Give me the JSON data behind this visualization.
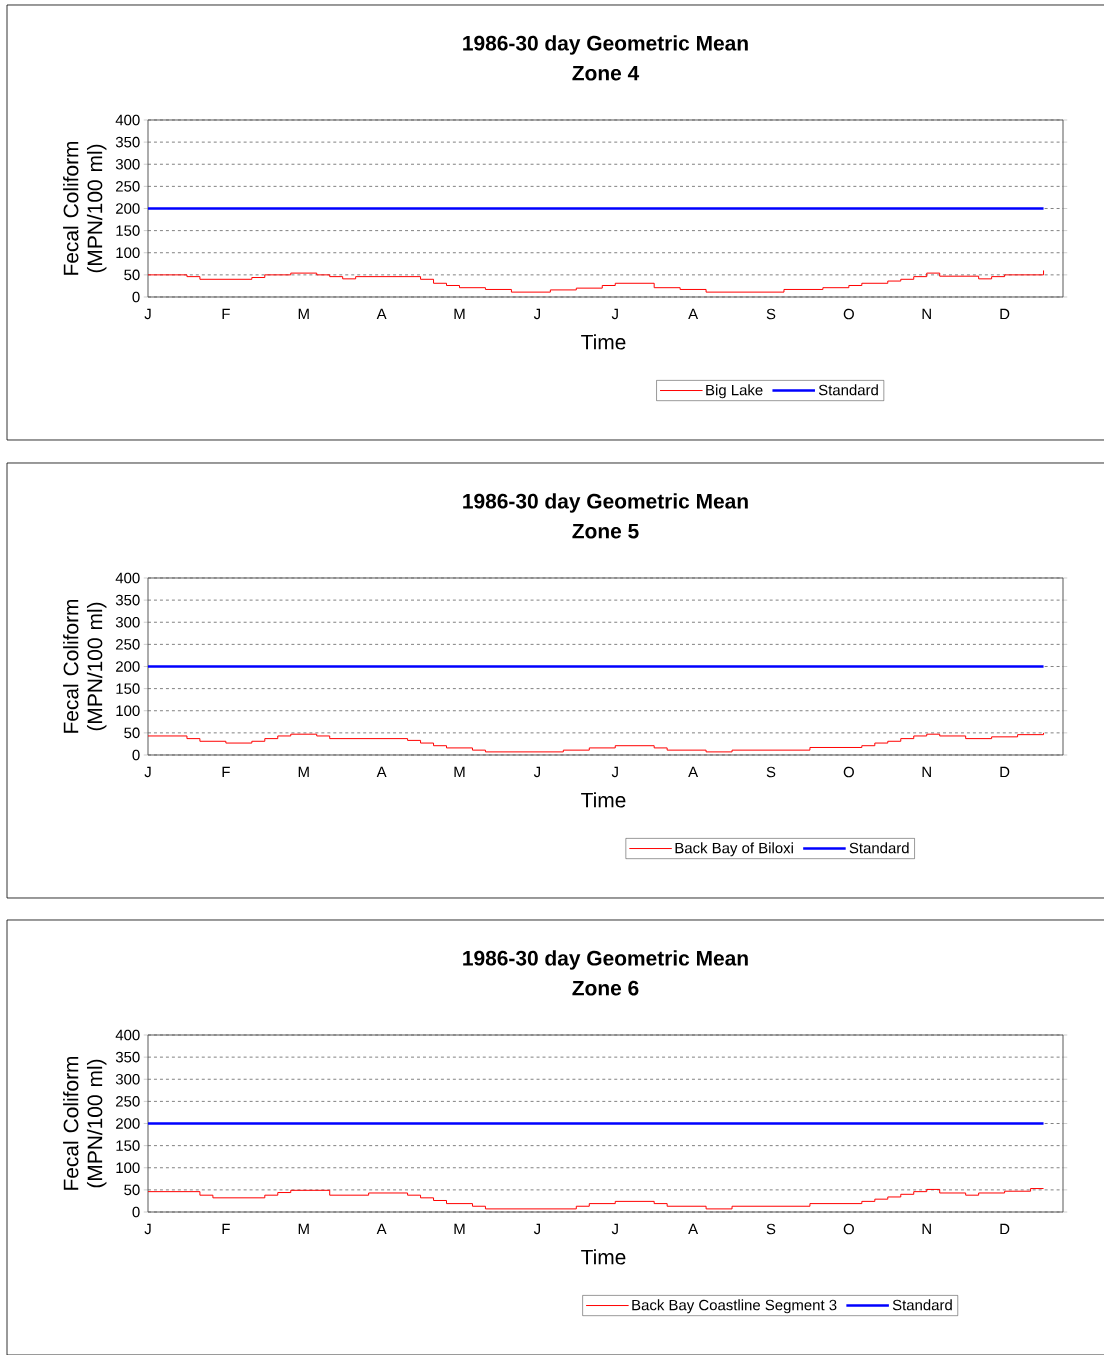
{
  "chart_data": [
    {
      "type": "line",
      "title": "1986-30 day Geometric Mean",
      "subtitle": "Zone 4",
      "xlabel": "Time",
      "ylabel": "Fecal Coliform (MPN/100 ml)",
      "ylim": [
        0,
        400
      ],
      "categories": [
        "J",
        null,
        null,
        null,
        null,
        null,
        "F",
        null,
        null,
        null,
        null,
        null,
        "M",
        null,
        null,
        null,
        null,
        null,
        "A",
        null,
        null,
        null,
        null,
        null,
        "M",
        null,
        null,
        null,
        null,
        null,
        "J",
        null,
        null,
        null,
        null,
        null,
        "J",
        null,
        null,
        null,
        null,
        null,
        "A",
        null,
        null,
        null,
        null,
        null,
        "S",
        null,
        null,
        null,
        null,
        null,
        "O",
        null,
        null,
        null,
        null,
        null,
        "N",
        null,
        null,
        null,
        null,
        null,
        "D",
        null,
        null,
        null
      ],
      "yticks": [
        0,
        50,
        100,
        150,
        200,
        250,
        300,
        350,
        400
      ],
      "grid": "y",
      "legend": "bottom",
      "series": [
        {
          "name": "Big Lake",
          "type": "step",
          "color": "#ff0000",
          "values": [
            50,
            50,
            50,
            46,
            40,
            40,
            40,
            40,
            44,
            50,
            50,
            54,
            54,
            50,
            46,
            41,
            46,
            46,
            46,
            46,
            46,
            40,
            31,
            26,
            21,
            21,
            17,
            17,
            11,
            11,
            11,
            16,
            16,
            20,
            20,
            26,
            31,
            31,
            31,
            21,
            21,
            17,
            17,
            11,
            11,
            11,
            11,
            11,
            11,
            17,
            17,
            17,
            21,
            21,
            26,
            31,
            31,
            36,
            40,
            46,
            54,
            47,
            47,
            47,
            41,
            46,
            50,
            50,
            50,
            60
          ]
        },
        {
          "name": "Standard",
          "color": "#0000ff",
          "values": [
            200,
            200,
            200,
            200,
            200,
            200,
            200,
            200,
            200,
            200,
            200,
            200,
            200,
            200,
            200,
            200,
            200,
            200,
            200,
            200,
            200,
            200,
            200,
            200,
            200,
            200,
            200,
            200,
            200,
            200,
            200,
            200,
            200,
            200,
            200,
            200,
            200,
            200,
            200,
            200,
            200,
            200,
            200,
            200,
            200,
            200,
            200,
            200,
            200,
            200,
            200,
            200,
            200,
            200,
            200,
            200,
            200,
            200,
            200,
            200,
            200,
            200,
            200,
            200,
            200,
            200,
            200,
            200,
            200,
            200
          ]
        }
      ]
    },
    {
      "type": "line",
      "title": "1986-30 day Geometric Mean",
      "subtitle": "Zone 5",
      "xlabel": "Time",
      "ylabel": "Fecal Coliform (MPN/100 ml)",
      "ylim": [
        0,
        400
      ],
      "categories": [
        "J",
        null,
        null,
        null,
        null,
        null,
        "F",
        null,
        null,
        null,
        null,
        null,
        "M",
        null,
        null,
        null,
        null,
        null,
        "A",
        null,
        null,
        null,
        null,
        null,
        "M",
        null,
        null,
        null,
        null,
        null,
        "J",
        null,
        null,
        null,
        null,
        null,
        "J",
        null,
        null,
        null,
        null,
        null,
        "A",
        null,
        null,
        null,
        null,
        null,
        "S",
        null,
        null,
        null,
        null,
        null,
        "O",
        null,
        null,
        null,
        null,
        null,
        "N",
        null,
        null,
        null,
        null,
        null,
        "D",
        null,
        null,
        null
      ],
      "yticks": [
        0,
        50,
        100,
        150,
        200,
        250,
        300,
        350,
        400
      ],
      "grid": "y",
      "legend": "bottom",
      "series": [
        {
          "name": "Back Bay of Biloxi",
          "type": "step",
          "color": "#ff0000",
          "values": [
            43,
            43,
            43,
            37,
            31,
            31,
            27,
            27,
            31,
            37,
            43,
            47,
            47,
            43,
            37,
            37,
            37,
            37,
            37,
            37,
            33,
            27,
            21,
            16,
            16,
            11,
            7,
            7,
            7,
            7,
            7,
            7,
            11,
            11,
            16,
            16,
            21,
            21,
            21,
            16,
            11,
            11,
            11,
            7,
            7,
            11,
            11,
            11,
            11,
            11,
            11,
            17,
            17,
            17,
            17,
            21,
            27,
            31,
            37,
            43,
            47,
            43,
            43,
            37,
            37,
            41,
            41,
            46,
            46,
            50
          ]
        },
        {
          "name": "Standard",
          "color": "#0000ff",
          "values": [
            200,
            200,
            200,
            200,
            200,
            200,
            200,
            200,
            200,
            200,
            200,
            200,
            200,
            200,
            200,
            200,
            200,
            200,
            200,
            200,
            200,
            200,
            200,
            200,
            200,
            200,
            200,
            200,
            200,
            200,
            200,
            200,
            200,
            200,
            200,
            200,
            200,
            200,
            200,
            200,
            200,
            200,
            200,
            200,
            200,
            200,
            200,
            200,
            200,
            200,
            200,
            200,
            200,
            200,
            200,
            200,
            200,
            200,
            200,
            200,
            200,
            200,
            200,
            200,
            200,
            200,
            200,
            200,
            200,
            200
          ]
        }
      ]
    },
    {
      "type": "line",
      "title": "1986-30 day Geometric Mean",
      "subtitle": "Zone 6",
      "xlabel": "Time",
      "ylabel": "Fecal Coliform (MPN/100 ml)",
      "ylim": [
        0,
        400
      ],
      "categories": [
        "J",
        null,
        null,
        null,
        null,
        null,
        "F",
        null,
        null,
        null,
        null,
        null,
        "M",
        null,
        null,
        null,
        null,
        null,
        "A",
        null,
        null,
        null,
        null,
        null,
        "M",
        null,
        null,
        null,
        null,
        null,
        "J",
        null,
        null,
        null,
        null,
        null,
        "J",
        null,
        null,
        null,
        null,
        null,
        "A",
        null,
        null,
        null,
        null,
        null,
        "S",
        null,
        null,
        null,
        null,
        null,
        "O",
        null,
        null,
        null,
        null,
        null,
        "N",
        null,
        null,
        null,
        null,
        null,
        "D",
        null,
        null,
        null
      ],
      "yticks": [
        0,
        50,
        100,
        150,
        200,
        250,
        300,
        350,
        400
      ],
      "grid": "y",
      "legend": "bottom",
      "series": [
        {
          "name": "Back Bay Coastline Segment 3",
          "type": "step",
          "color": "#ff0000",
          "values": [
            46,
            46,
            46,
            46,
            38,
            32,
            32,
            32,
            32,
            38,
            44,
            49,
            49,
            49,
            38,
            38,
            38,
            43,
            43,
            43,
            38,
            32,
            26,
            19,
            19,
            13,
            7,
            7,
            7,
            7,
            7,
            7,
            7,
            13,
            19,
            19,
            24,
            24,
            24,
            19,
            13,
            13,
            13,
            7,
            7,
            13,
            13,
            13,
            13,
            13,
            13,
            19,
            19,
            19,
            19,
            24,
            29,
            34,
            40,
            46,
            51,
            43,
            43,
            38,
            43,
            43,
            47,
            47,
            53,
            53
          ]
        },
        {
          "name": "Standard",
          "color": "#0000ff",
          "values": [
            200,
            200,
            200,
            200,
            200,
            200,
            200,
            200,
            200,
            200,
            200,
            200,
            200,
            200,
            200,
            200,
            200,
            200,
            200,
            200,
            200,
            200,
            200,
            200,
            200,
            200,
            200,
            200,
            200,
            200,
            200,
            200,
            200,
            200,
            200,
            200,
            200,
            200,
            200,
            200,
            200,
            200,
            200,
            200,
            200,
            200,
            200,
            200,
            200,
            200,
            200,
            200,
            200,
            200,
            200,
            200,
            200,
            200,
            200,
            200,
            200,
            200,
            200,
            200,
            200,
            200,
            200,
            200,
            200,
            200
          ]
        }
      ]
    }
  ]
}
